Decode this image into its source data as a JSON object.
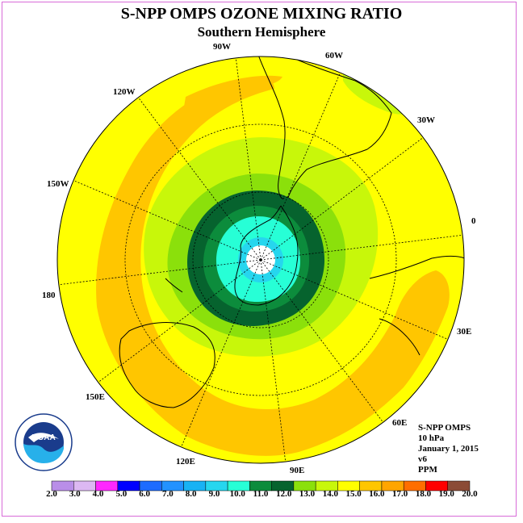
{
  "header": {
    "title": "S-NPP OMPS OZONE MIXING RATIO",
    "subtitle": "Southern Hemisphere"
  },
  "longitude_labels": [
    "90W",
    "60W",
    "30W",
    "0",
    "30E",
    "60E",
    "90E",
    "120E",
    "150E",
    "180",
    "150W",
    "120W"
  ],
  "info": {
    "instrument": "S-NPP OMPS",
    "level": "10 hPa",
    "date": "January 1, 2015",
    "version": "v6",
    "units": "PPM"
  },
  "logo": {
    "text": "NOAA",
    "ring_text": "NATIONAL OCEANIC AND ATMOSPHERIC ADMINISTRATION · U.S. DEPARTMENT OF COMMERCE"
  },
  "colorbar": {
    "labels": [
      "2.0",
      "3.0",
      "4.0",
      "5.0",
      "6.0",
      "7.0",
      "8.0",
      "9.0",
      "10.0",
      "11.0",
      "12.0",
      "13.0",
      "14.0",
      "15.0",
      "16.0",
      "17.0",
      "18.0",
      "19.0",
      "20.0"
    ],
    "colors": [
      "#b98ee8",
      "#dcb8f2",
      "#ff28ff",
      "#0000ff",
      "#1e6cff",
      "#2392ff",
      "#18b2f4",
      "#26d6ee",
      "#27ffd6",
      "#0c8c3c",
      "#06632e",
      "#8be00b",
      "#c8f70a",
      "#ffff00",
      "#ffc600",
      "#ffa500",
      "#ff6e00",
      "#ff0000",
      "#8b4b36"
    ]
  },
  "colors": {
    "frame": "#d86bd8",
    "yellow": "#ffff00",
    "orange": "#ffc600",
    "light_green": "#c8f70a",
    "green": "#8be00b",
    "dark_green": "#06632e",
    "mid_green": "#0c8c3c",
    "aqua": "#27ffd6",
    "cyan": "#26d6ee"
  }
}
